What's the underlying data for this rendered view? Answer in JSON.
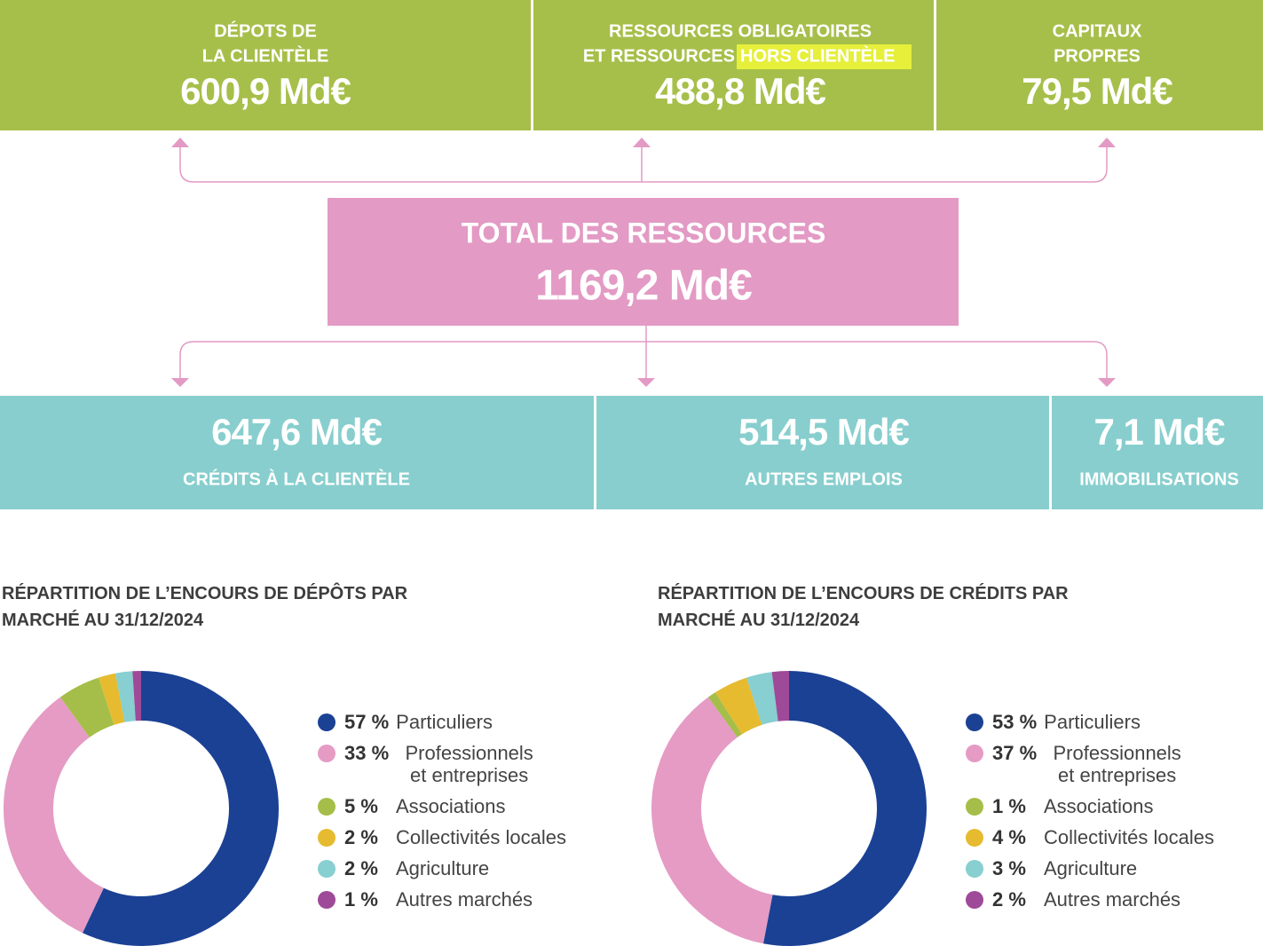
{
  "resources": [
    {
      "label": [
        "DÉPOTS DE",
        "LA CLIENTÈLE"
      ],
      "value": "600,9 Md€"
    },
    {
      "label": [
        "RESSOURCES OBLIGATOIRES",
        "ET RESSOURCES",
        "HORS CLIENTÈLE"
      ],
      "value": "488,8 Md€"
    },
    {
      "label": [
        "CAPITAUX",
        "PROPRES"
      ],
      "value": "79,5 Md€"
    }
  ],
  "total": {
    "label": "TOTAL DES RESSOURCES",
    "value": "1169,2 Md€"
  },
  "uses": [
    {
      "value": "647,6 Md€",
      "label": "CRÉDITS À LA CLIENTÈLE"
    },
    {
      "value": "514,5 Md€",
      "label": "AUTRES EMPLOIS"
    },
    {
      "value": "7,1 Md€",
      "label": "IMMOBILISATIONS"
    }
  ],
  "chart_data": [
    {
      "type": "donut",
      "title": "RÉPARTITION DE L’ENCOURS DE DÉPÔTS PAR MARCHÉ AU 31/12/2024",
      "categories": [
        "Particuliers",
        "Professionnels et entreprises",
        "Associations",
        "Collectivités locales",
        "Agriculture",
        "Autres marchés"
      ],
      "values": [
        57,
        33,
        5,
        2,
        2,
        1
      ],
      "value_labels": [
        "57 %",
        "33 %",
        "5 %",
        "2 %",
        "2 %",
        "1 %"
      ],
      "colors": [
        "#1b4194",
        "#e59bc4",
        "#a5be49",
        "#e6bb30",
        "#87cfd0",
        "#9f4a98"
      ]
    },
    {
      "type": "donut",
      "title": "RÉPARTITION DE L’ENCOURS DE CRÉDITS PAR MARCHÉ AU 31/12/2024",
      "categories": [
        "Particuliers",
        "Professionnels et entreprises",
        "Associations",
        "Collectivités locales",
        "Agriculture",
        "Autres marchés"
      ],
      "values": [
        53,
        37,
        1,
        4,
        3,
        2
      ],
      "value_labels": [
        "53 %",
        "37 %",
        "1 %",
        "4 %",
        "3 %",
        "2 %"
      ],
      "colors": [
        "#1b4194",
        "#e59bc4",
        "#a5be49",
        "#e6bb30",
        "#87cfd0",
        "#9f4a98"
      ]
    }
  ]
}
